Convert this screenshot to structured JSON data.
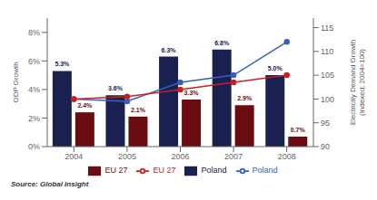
{
  "chart_data": {
    "type": "bar",
    "categories": [
      "2004",
      "2005",
      "2006",
      "2007",
      "2008"
    ],
    "ylabel": "GDP Growth",
    "y2label": "Electricity Demand Growth\n(Indexed; 2004=100)",
    "ylim": [
      0,
      9
    ],
    "yticks": [
      {
        "value": 0,
        "label": "0%"
      },
      {
        "value": 2,
        "label": "2%"
      },
      {
        "value": 4,
        "label": "4%"
      },
      {
        "value": 6,
        "label": "6%"
      },
      {
        "value": 8,
        "label": "8%"
      }
    ],
    "y2lim": [
      90,
      117
    ],
    "y2ticks": [
      90,
      95,
      100,
      105,
      110,
      115
    ],
    "grid": false,
    "legend": "bottom",
    "data_labels": true,
    "annotations": [
      "Source: Global Insight"
    ],
    "series": [
      {
        "name": "Poland",
        "type": "bar",
        "color": "#1a2050",
        "values": [
          5.3,
          3.6,
          6.3,
          6.8,
          5.0
        ],
        "value_labels": [
          "5.3%",
          "3.6%",
          "6.3%",
          "6.8%",
          "5.0%"
        ]
      },
      {
        "name": "EU 27",
        "type": "bar",
        "color": "#6b0d10",
        "values": [
          2.4,
          2.1,
          3.3,
          2.9,
          0.7
        ],
        "value_labels": [
          "2.4%",
          "2.1%",
          "3.3%",
          "2.9%",
          "0.7%"
        ]
      },
      {
        "name": "Poland",
        "type": "line",
        "axis": "y2",
        "color": "#3560c0",
        "marker": "o",
        "values": [
          100,
          99.5,
          103.5,
          105,
          112
        ]
      },
      {
        "name": "EU 27",
        "type": "line",
        "axis": "y2",
        "color": "#cc2020",
        "marker": "o",
        "values": [
          100,
          100.5,
          102,
          103.5,
          105
        ]
      }
    ]
  }
}
